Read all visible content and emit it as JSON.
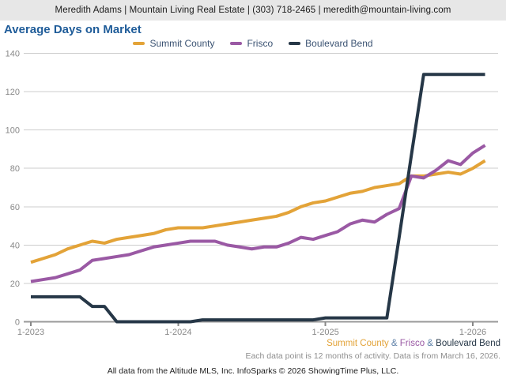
{
  "header": {
    "contact_line": "Meredith Adams | Mountain Living Real Estate | (303) 718-2465 | meredith@mountain-living.com"
  },
  "title": "Average Days on Market",
  "title_color": "#1f5c99",
  "legend": [
    {
      "label": "Summit County",
      "color": "#e3a338"
    },
    {
      "label": "Frisco",
      "color": "#9a59a4"
    },
    {
      "label": "Boulevard Bend",
      "color": "#263747"
    }
  ],
  "legend_text_color": "#3a5272",
  "chart_data": {
    "type": "line",
    "categories": [
      "1-2023",
      "2-2023",
      "3-2023",
      "4-2023",
      "5-2023",
      "6-2023",
      "7-2023",
      "8-2023",
      "9-2023",
      "10-2023",
      "11-2023",
      "12-2023",
      "1-2024",
      "2-2024",
      "3-2024",
      "4-2024",
      "5-2024",
      "6-2024",
      "7-2024",
      "8-2024",
      "9-2024",
      "10-2024",
      "11-2024",
      "12-2024",
      "1-2025",
      "2-2025",
      "3-2025",
      "4-2025",
      "5-2025",
      "6-2025",
      "7-2025",
      "8-2025",
      "9-2025",
      "10-2025",
      "11-2025",
      "12-2025",
      "1-2026",
      "2-2026"
    ],
    "series": [
      {
        "name": "Summit County",
        "color": "#e3a338",
        "values": [
          31,
          33,
          35,
          38,
          40,
          42,
          41,
          43,
          44,
          45,
          46,
          48,
          49,
          49,
          49,
          50,
          51,
          52,
          53,
          54,
          55,
          57,
          60,
          62,
          63,
          65,
          67,
          68,
          70,
          71,
          72,
          76,
          76,
          77,
          78,
          77,
          80,
          84
        ]
      },
      {
        "name": "Frisco",
        "color": "#9a59a4",
        "values": [
          21,
          22,
          23,
          25,
          27,
          32,
          33,
          34,
          35,
          37,
          39,
          40,
          41,
          42,
          42,
          42,
          40,
          39,
          38,
          39,
          39,
          41,
          44,
          43,
          45,
          47,
          51,
          53,
          52,
          56,
          59,
          76,
          75,
          79,
          84,
          82,
          88,
          92
        ]
      },
      {
        "name": "Boulevard Bend",
        "color": "#263747",
        "values": [
          13,
          13,
          13,
          13,
          13,
          8,
          8,
          0,
          0,
          0,
          0,
          0,
          0,
          0,
          1,
          1,
          1,
          1,
          1,
          1,
          1,
          1,
          1,
          1,
          2,
          2,
          2,
          2,
          2,
          2,
          44,
          87,
          129,
          129,
          129,
          129,
          129,
          129
        ]
      }
    ],
    "title": "Average Days on Market",
    "xlabel": "",
    "ylabel": "",
    "ylim": [
      0,
      140
    ],
    "yticks": [
      0,
      20,
      40,
      60,
      80,
      100,
      120,
      140
    ],
    "xticks": [
      {
        "index": 0,
        "label": "1-2023"
      },
      {
        "index": 12,
        "label": "1-2024"
      },
      {
        "index": 24,
        "label": "1-2025"
      },
      {
        "index": 36,
        "label": "1-2026"
      }
    ],
    "grid": true,
    "grid_color": "#cccccc",
    "axis_color": "#999999",
    "tick_label_color": "#888888",
    "legend_position": "top-center"
  },
  "footer": {
    "series_attribution": [
      {
        "label": "Summit County",
        "color": "#e3a338"
      },
      {
        "label": "Frisco",
        "color": "#9a59a4"
      },
      {
        "label": "Boulevard Bend",
        "color": "#263747"
      }
    ],
    "separator": " & ",
    "separator_color": "#5e81a8",
    "note": "Each data point is 12 months of activity. Data is from March 16, 2026.",
    "disclaimer": "All data from the Altitude MLS, Inc. InfoSparks © 2026 ShowingTime Plus, LLC."
  }
}
